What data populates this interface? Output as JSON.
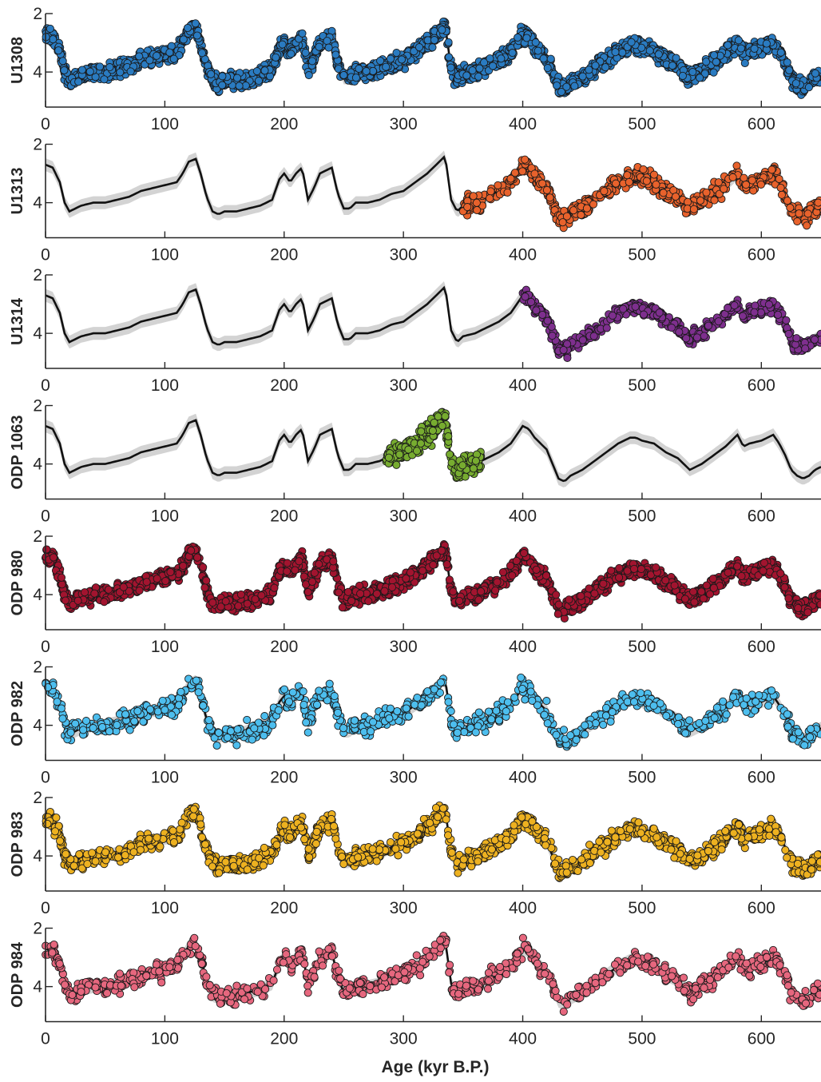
{
  "chart_data": {
    "type": "scatter",
    "xlabel": "Age (kyr B.P.)",
    "xlim": [
      0,
      650
    ],
    "ylim": [
      2,
      5.2
    ],
    "y_reversed": true,
    "x_ticks": [
      0,
      100,
      200,
      300,
      400,
      500,
      600
    ],
    "y_ticks": [
      2,
      4
    ],
    "stack_model": {
      "name": "",
      "line_color": "#111111",
      "band_color": "#d3d3d3",
      "x": [
        0,
        6,
        12,
        16,
        20,
        30,
        40,
        50,
        60,
        70,
        80,
        90,
        100,
        110,
        115,
        120,
        126,
        130,
        135,
        140,
        145,
        150,
        160,
        170,
        180,
        190,
        196,
        200,
        205,
        210,
        215,
        220,
        225,
        230,
        235,
        240,
        245,
        250,
        255,
        260,
        270,
        280,
        290,
        300,
        310,
        320,
        330,
        335,
        340,
        345,
        350,
        360,
        370,
        380,
        390,
        400,
        405,
        410,
        420,
        430,
        435,
        440,
        450,
        460,
        470,
        480,
        490,
        495,
        500,
        510,
        520,
        530,
        535,
        540,
        550,
        560,
        570,
        575,
        580,
        585,
        590,
        600,
        610,
        615,
        620,
        625,
        630,
        635,
        640,
        645,
        650
      ],
      "y": [
        2.7,
        2.8,
        3.3,
        4.0,
        4.3,
        4.1,
        4.0,
        4.0,
        3.9,
        3.8,
        3.6,
        3.5,
        3.4,
        3.3,
        3.0,
        2.6,
        2.5,
        3.0,
        3.8,
        4.3,
        4.4,
        4.3,
        4.3,
        4.2,
        4.1,
        3.9,
        3.2,
        3.0,
        3.3,
        3.0,
        2.8,
        3.9,
        3.5,
        3.0,
        2.9,
        2.8,
        3.7,
        4.2,
        4.2,
        4.0,
        4.0,
        3.9,
        3.7,
        3.6,
        3.3,
        3.0,
        2.6,
        2.4,
        3.9,
        4.3,
        4.1,
        4.0,
        3.8,
        3.6,
        3.3,
        2.7,
        2.8,
        3.1,
        3.5,
        4.5,
        4.6,
        4.4,
        4.2,
        3.9,
        3.6,
        3.3,
        3.1,
        3.1,
        3.2,
        3.3,
        3.6,
        3.8,
        4.0,
        4.2,
        4.0,
        3.7,
        3.4,
        3.2,
        3.0,
        3.4,
        3.3,
        3.2,
        3.0,
        3.3,
        3.7,
        4.2,
        4.4,
        4.5,
        4.4,
        4.2,
        4.1
      ]
    },
    "series": [
      {
        "name": "U1308",
        "color": "#2a7bc1",
        "x_range": [
          0,
          650
        ],
        "density": 4,
        "noise": 0.2
      },
      {
        "name": "U1313",
        "color": "#e8622c",
        "x_range": [
          350,
          650
        ],
        "density": 2.2,
        "noise": 0.22
      },
      {
        "name": "U1314",
        "color": "#7e2f8e",
        "x_range": [
          400,
          650
        ],
        "density": 2.2,
        "noise": 0.18
      },
      {
        "name": "ODP 1063",
        "color": "#77ac30",
        "x_range": [
          285,
          365
        ],
        "density": 3.5,
        "noise": 0.28
      },
      {
        "name": "ODP 980",
        "color": "#a2142f",
        "x_range": [
          0,
          650
        ],
        "density": 3.2,
        "noise": 0.2
      },
      {
        "name": "ODP 982",
        "color": "#4dbeee",
        "x_range": [
          0,
          650
        ],
        "density": 1.3,
        "noise": 0.25
      },
      {
        "name": "ODP 983",
        "color": "#edb120",
        "x_range": [
          0,
          650
        ],
        "density": 2.2,
        "noise": 0.22
      },
      {
        "name": "ODP 984",
        "color": "#e6677e",
        "x_range": [
          0,
          650
        ],
        "density": 1.4,
        "noise": 0.23
      }
    ]
  }
}
